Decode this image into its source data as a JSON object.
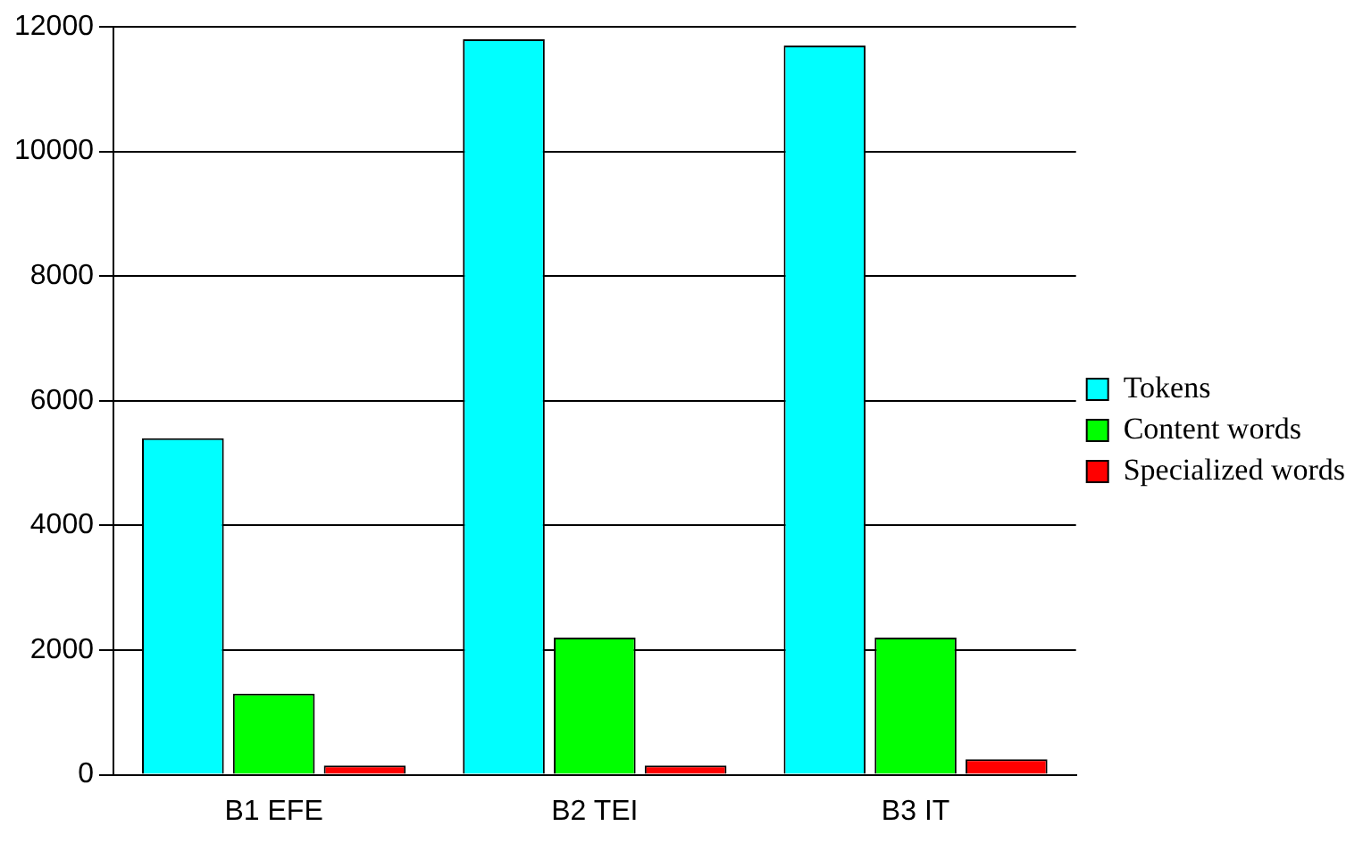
{
  "chart_data": {
    "type": "bar",
    "categories": [
      "B1 EFE",
      "B2 TEI",
      "B3 IT"
    ],
    "series": [
      {
        "name": "Tokens",
        "color": "#00ffff",
        "values": [
          5400,
          11800,
          11700
        ]
      },
      {
        "name": "Content words",
        "color": "#00ff00",
        "values": [
          1300,
          2200,
          2200
        ]
      },
      {
        "name": "Specialized words",
        "color": "#ff0000",
        "values": [
          150,
          150,
          250
        ]
      }
    ],
    "ylim": [
      0,
      12000
    ],
    "yticks": [
      0,
      2000,
      4000,
      6000,
      8000,
      10000,
      12000
    ],
    "grid": "y",
    "legend": "right"
  }
}
